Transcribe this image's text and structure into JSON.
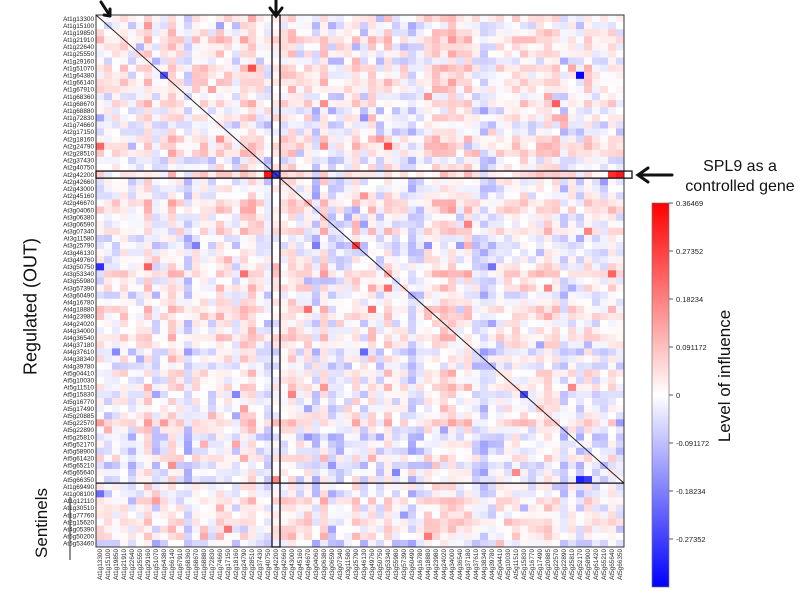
{
  "chart_data": {
    "type": "heatmap",
    "title": "",
    "ylabel": "Regulated (OUT)",
    "colorbar_label": "Level of influence",
    "colorbar_ticks": [
      "0.36469",
      "0.27352",
      "0.18234",
      "0.091172",
      "0",
      "-0.091172",
      "-0.18234",
      "-0.27352"
    ],
    "vmin": -0.36469,
    "vmax": 0.36469,
    "annotation_text": [
      "SPL9 as a",
      "controlled gene"
    ],
    "sentinels_label": "Sentinels",
    "rows": [
      "At1g13300",
      "At1g15100",
      "At1g19850",
      "At1g21910",
      "At1g22640",
      "At1g25550",
      "At1g29160",
      "At1g51070",
      "At1g64380",
      "At1g66140",
      "At1g67910",
      "At1g68360",
      "At1g68670",
      "At1g68880",
      "At1g72830",
      "At1g74660",
      "At2g17150",
      "At2g18160",
      "At2g24790",
      "At2g28510",
      "At2g37430",
      "At2g40750",
      "At2g42200",
      "At2g42660",
      "At2g43000",
      "At2g45160",
      "At2g46670",
      "At3g04060",
      "At3g06380",
      "At3g06590",
      "At3g07340",
      "At3g11580",
      "At3g25790",
      "At3g46130",
      "At3g49760",
      "At3g50750",
      "At3g53340",
      "At3g55980",
      "At3g57390",
      "At3g60490",
      "At4g16780",
      "At4g18880",
      "At4g23980",
      "At4g24020",
      "At4g34000",
      "At4g36540",
      "At4g37180",
      "At4g37610",
      "At4g38340",
      "At4g39780",
      "At5g04410",
      "At5g10030",
      "At5g11510",
      "At5g15830",
      "At5g16770",
      "At5g17490",
      "At5g20885",
      "At5g22570",
      "At5g22890",
      "At5g25810",
      "At5g52170",
      "At5g58900",
      "At5g61420",
      "At5g65210",
      "At5g65640",
      "At5g66350",
      "At1g69490",
      "At1g08100",
      "At1g12110",
      "At1g30510",
      "At1g77760",
      "At2g15620",
      "At4g05390",
      "At5g50200",
      "At5g53460"
    ],
    "cols": [
      "At1g13300",
      "At1g15100",
      "At1g19850",
      "At1g21910",
      "At1g22640",
      "At1g25550",
      "At1g29160",
      "At1g51070",
      "At1g64380",
      "At1g66140",
      "At1g67910",
      "At1g68360",
      "At1g68670",
      "At1g68880",
      "At1g72830",
      "At1g74660",
      "At2g17150",
      "At2g18160",
      "At2g24790",
      "At2g28510",
      "At2g37430",
      "At2g40750",
      "At2g42200",
      "At2g42660",
      "At2g43000",
      "At2g45160",
      "At2g46670",
      "At3g04060",
      "At3g06380",
      "At3g06590",
      "At3g07340",
      "At3g11580",
      "At3g25790",
      "At3g46130",
      "At3g49760",
      "At3g50750",
      "At3g53340",
      "At3g55980",
      "At3g57390",
      "At3g60490",
      "At4g16780",
      "At4g18880",
      "At4g23980",
      "At4g24020",
      "At4g34000",
      "At4g36540",
      "At4g37180",
      "At4g37610",
      "At4g38340",
      "At4g39780",
      "At5g04410",
      "At5g10030",
      "At5g11510",
      "At5g15830",
      "At5g16770",
      "At5g17490",
      "At5g20885",
      "At5g22570",
      "At5g22890",
      "At5g25810",
      "At5g52170",
      "At5g58900",
      "At5g61420",
      "At5g65210",
      "At5g65640",
      "At5g66350"
    ],
    "highlight_row": "At2g42200",
    "highlight_col": "At2g42200",
    "sentinel_start_row": "At1g69490",
    "seed": 12345,
    "strong_cells": [
      {
        "row": "At1g64380",
        "col": "At5g52170",
        "value": -0.36
      },
      {
        "row": "At1g64380",
        "col": "At1g64380",
        "value": -0.25
      },
      {
        "row": "At2g42200",
        "col": "At2g42200",
        "value": -0.3
      },
      {
        "row": "At2g42200",
        "col": "At5g66350",
        "value": 0.33
      },
      {
        "row": "At2g42200",
        "col": "At5g65640",
        "value": 0.3
      },
      {
        "row": "At2g42200",
        "col": "At2g40750",
        "value": 0.34
      },
      {
        "row": "At3g25790",
        "col": "At3g25790",
        "value": 0.28
      },
      {
        "row": "At3g50750",
        "col": "At1g13300",
        "value": -0.3
      },
      {
        "row": "At5g15830",
        "col": "At5g15830",
        "value": -0.26
      },
      {
        "row": "At5g66350",
        "col": "At5g52170",
        "value": -0.32
      },
      {
        "row": "At5g66350",
        "col": "At5g58900",
        "value": -0.28
      }
    ]
  }
}
